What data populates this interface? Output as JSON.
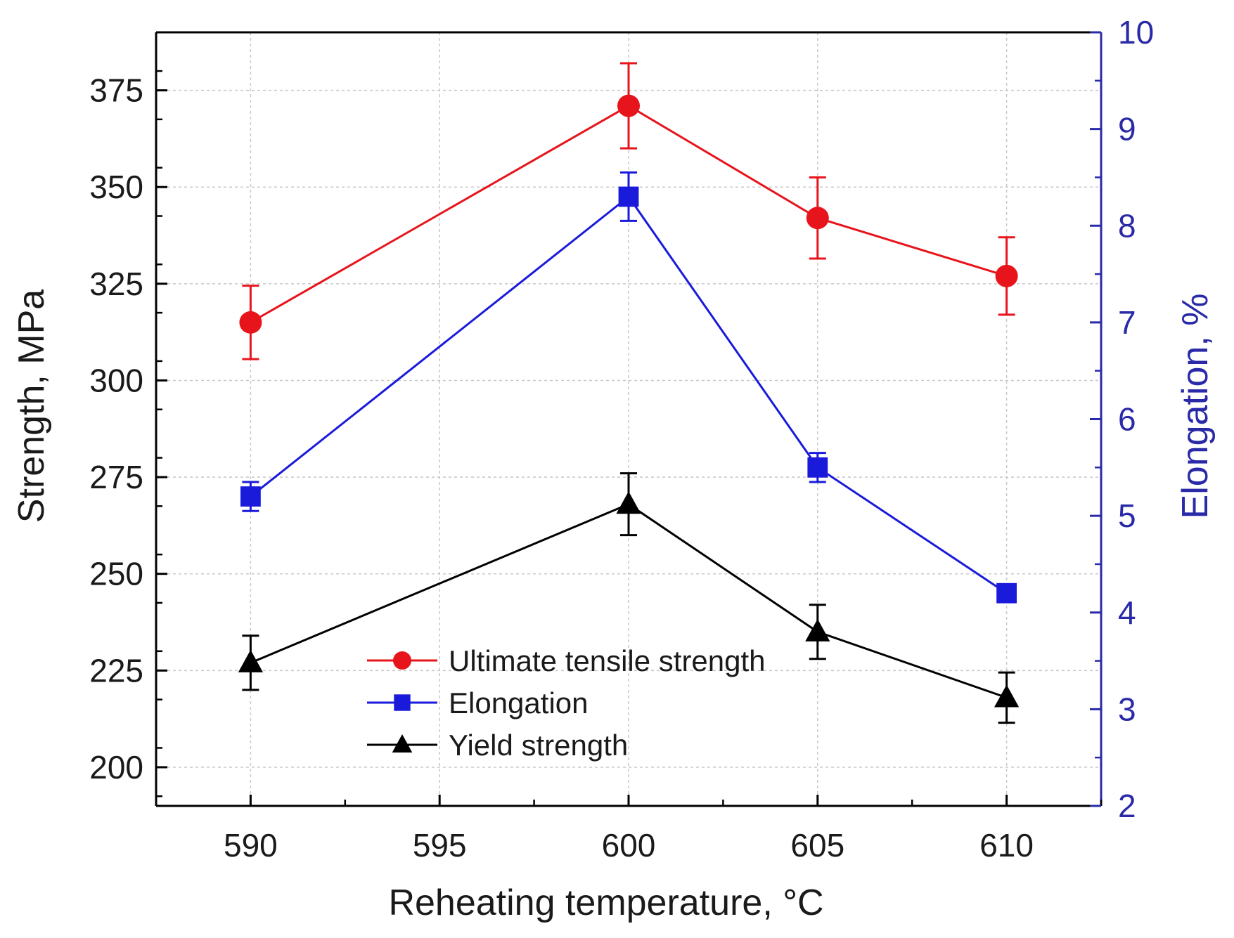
{
  "chart_data": {
    "type": "line",
    "title": "",
    "xlabel": "Reheating temperature, °C",
    "ylabel": "Strength, MPa",
    "y2label": "Elongation, %",
    "x": [
      590,
      600,
      605,
      610
    ],
    "xlim": [
      587.5,
      612.5
    ],
    "ylim": [
      190,
      390
    ],
    "y2lim": [
      2,
      10
    ],
    "x_ticks": [
      590,
      595,
      600,
      605,
      610
    ],
    "y_ticks": [
      200,
      225,
      250,
      275,
      300,
      325,
      350,
      375
    ],
    "y2_ticks": [
      2,
      3,
      4,
      5,
      6,
      7,
      8,
      9,
      10
    ],
    "grid": true,
    "legend_position": "bottom-center",
    "series": [
      {
        "name": "Ultimate tensile strength",
        "axis": "left",
        "marker": "circle",
        "color": "#e8141b",
        "values": [
          315,
          371,
          342,
          327
        ],
        "errors": [
          9.5,
          11,
          10.5,
          10
        ]
      },
      {
        "name": "Elongation",
        "axis": "right",
        "marker": "square",
        "color": "#1a1adb",
        "values": [
          5.2,
          8.3,
          5.5,
          4.2
        ],
        "errors": [
          0.15,
          0.25,
          0.15,
          0.05
        ]
      },
      {
        "name": "Yield strength",
        "axis": "left",
        "marker": "triangle",
        "color": "#000000",
        "values": [
          227,
          268,
          235,
          218
        ],
        "errors": [
          7,
          8,
          7,
          6.5
        ]
      }
    ],
    "axis_colors": {
      "left": "#000000",
      "right": "#2a2aa8"
    }
  }
}
